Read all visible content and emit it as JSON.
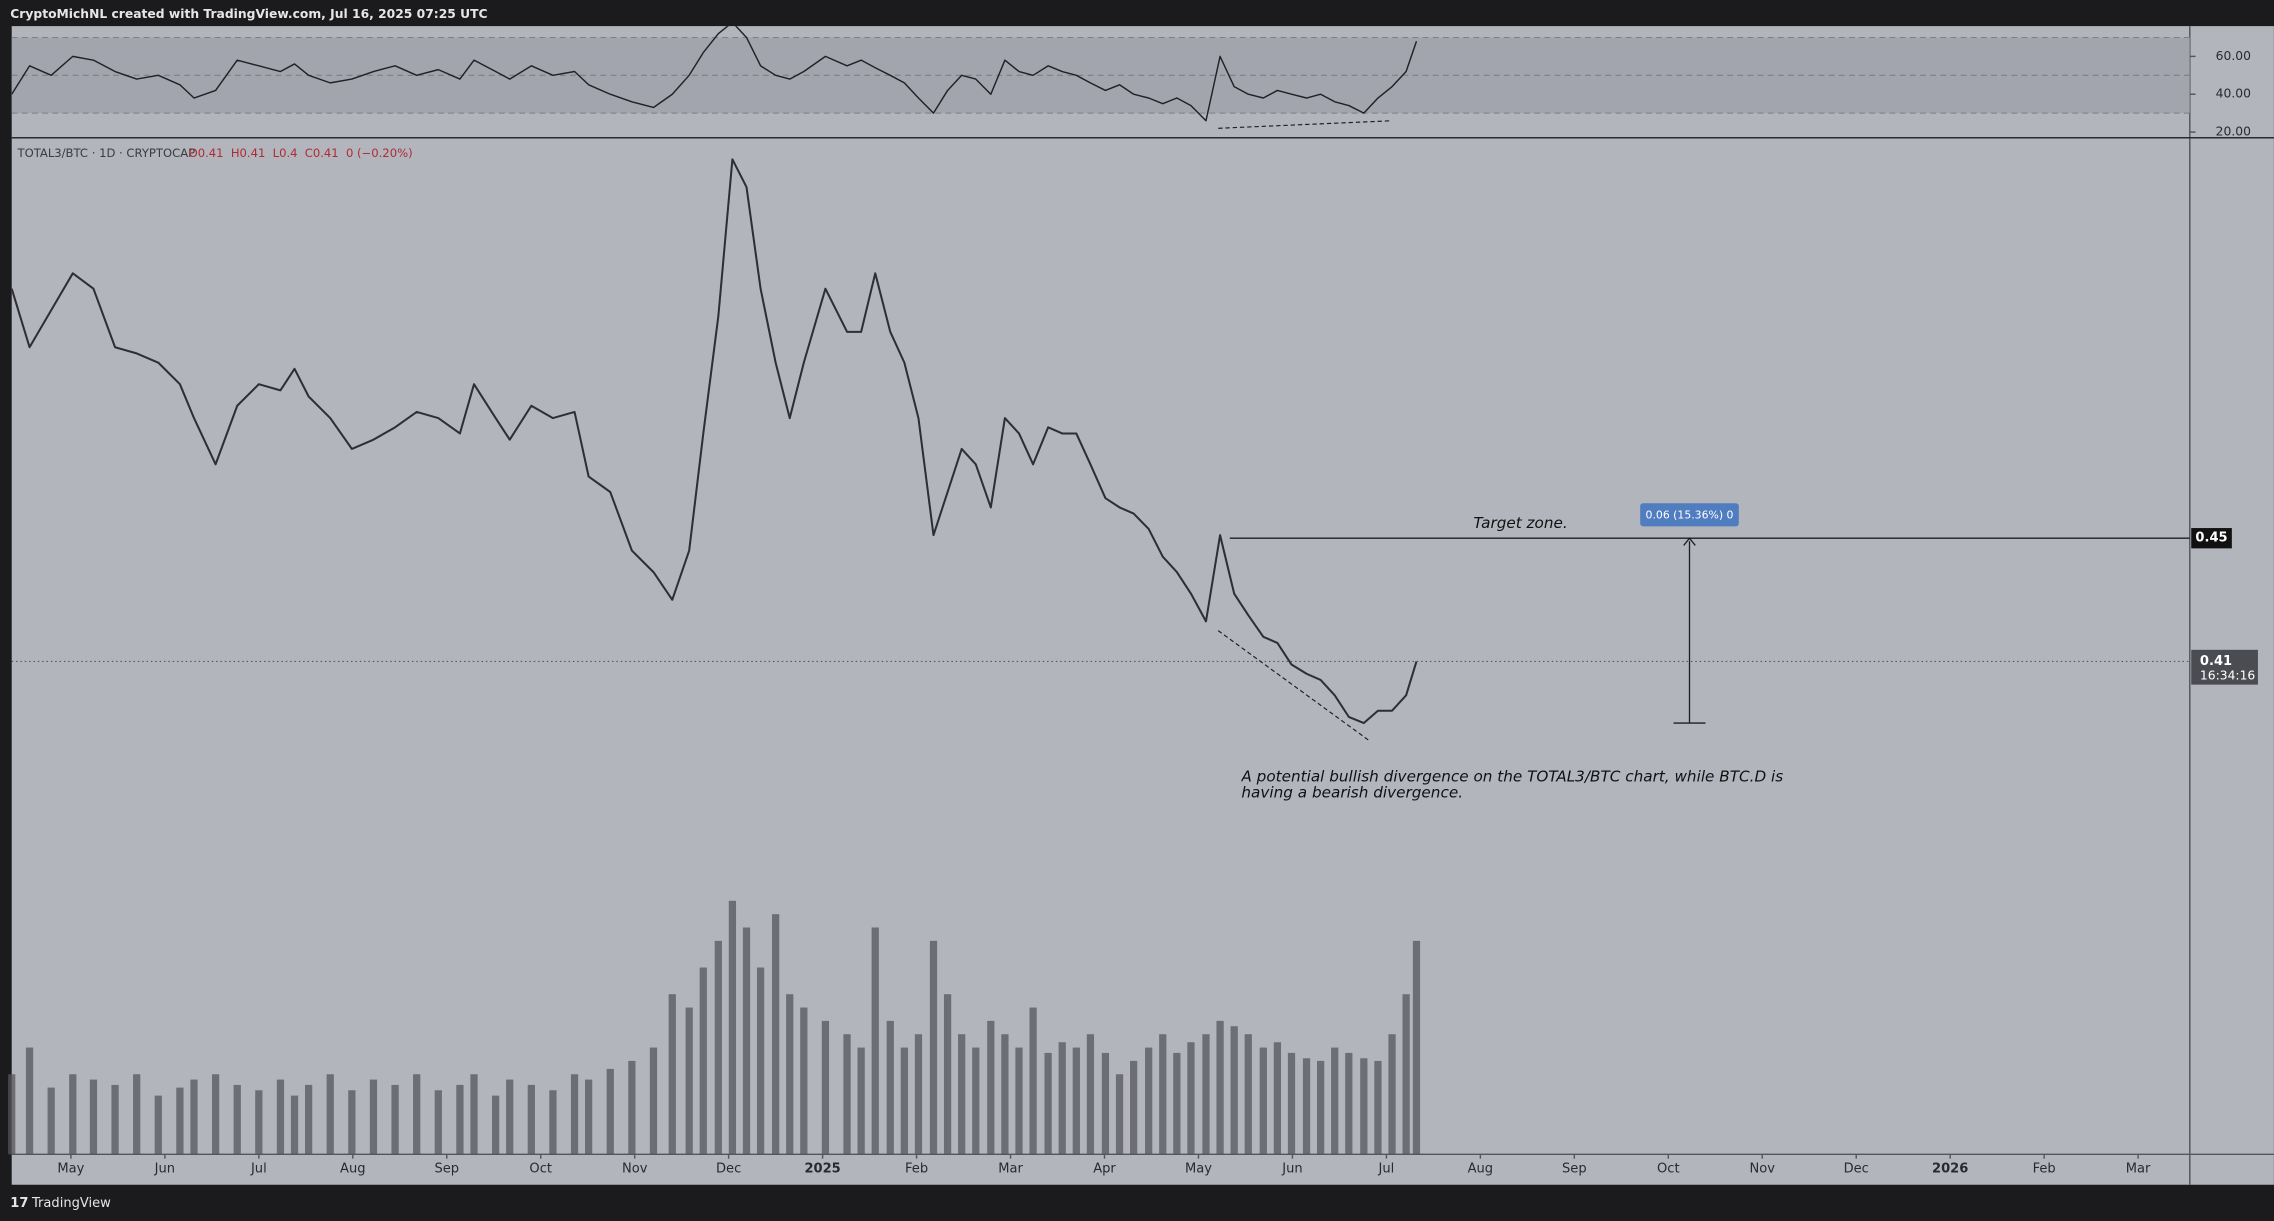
{
  "header": {
    "text": "CryptoMichNL created with TradingView.com, Jul 16, 2025 07:25 UTC"
  },
  "footer": {
    "brand": "TradingView"
  },
  "chart_data": [
    {
      "type": "line",
      "title": "TOTAL3/BTC · 1D · CRYPTOCAP",
      "ohlc": [
        "O0.41",
        "H0.41",
        "L0.4",
        "C0.41",
        "0 (−0.20%)"
      ],
      "color": "#2e2e33",
      "x": [
        3.37,
        3.56,
        3.79,
        4.02,
        4.24,
        4.47,
        4.7,
        4.93,
        5.16,
        5.31,
        5.54,
        5.77,
        6.0,
        6.23,
        6.38,
        6.53,
        6.76,
        6.99,
        7.22,
        7.45,
        7.68,
        7.91,
        8.14,
        8.29,
        8.52,
        8.67,
        8.9,
        9.13,
        9.36,
        9.51,
        9.74,
        9.97,
        10.2,
        10.4,
        10.58,
        10.73,
        10.89,
        11.04,
        11.19,
        11.34,
        11.5,
        11.65,
        11.8,
        12.03,
        12.26,
        12.41,
        12.56,
        12.72,
        12.87,
        13.02,
        13.18,
        13.33,
        13.48,
        13.63,
        13.79,
        13.94,
        14.09,
        14.24,
        14.4,
        14.55,
        14.7,
        14.85,
        15.01,
        15.16,
        15.31,
        15.47,
        15.62,
        15.77,
        15.92,
        16.08,
        16.23,
        16.38,
        16.53,
        16.69,
        16.84,
        16.99,
        17.15,
        17.3,
        17.45,
        17.6,
        17.76,
        17.91,
        18.06,
        18.21,
        18.32
      ],
      "values": [
        0.531,
        0.512,
        0.524,
        0.536,
        0.531,
        0.512,
        0.51,
        0.507,
        0.5,
        0.489,
        0.474,
        0.493,
        0.5,
        0.498,
        0.505,
        0.496,
        0.489,
        0.479,
        0.482,
        0.486,
        0.491,
        0.489,
        0.484,
        0.5,
        0.489,
        0.482,
        0.493,
        0.489,
        0.491,
        0.47,
        0.465,
        0.446,
        0.439,
        0.43,
        0.446,
        0.484,
        0.522,
        0.573,
        0.564,
        0.531,
        0.507,
        0.489,
        0.507,
        0.531,
        0.517,
        0.517,
        0.536,
        0.517,
        0.507,
        0.489,
        0.451,
        0.465,
        0.479,
        0.474,
        0.46,
        0.489,
        0.484,
        0.474,
        0.486,
        0.484,
        0.484,
        0.474,
        0.463,
        0.46,
        0.458,
        0.453,
        0.444,
        0.439,
        0.432,
        0.423,
        0.451,
        0.432,
        0.425,
        0.418,
        0.416,
        0.409,
        0.406,
        0.404,
        0.399,
        0.392,
        0.39,
        0.394,
        0.394,
        0.399,
        0.41
      ],
      "xlim": [
        3.37,
        26.55
      ],
      "ylim": [
        0.25,
        0.58
      ],
      "xticks": [
        {
          "value": 4,
          "label": "May"
        },
        {
          "value": 5,
          "label": "Jun"
        },
        {
          "value": 6,
          "label": "Jul"
        },
        {
          "value": 7,
          "label": "Aug"
        },
        {
          "value": 8,
          "label": "Sep"
        },
        {
          "value": 9,
          "label": "Oct"
        },
        {
          "value": 10,
          "label": "Nov"
        },
        {
          "value": 11,
          "label": "Dec"
        },
        {
          "value": 12,
          "label": "2025"
        },
        {
          "value": 13,
          "label": "Feb"
        },
        {
          "value": 14,
          "label": "Mar"
        },
        {
          "value": 15,
          "label": "Apr"
        },
        {
          "value": 16,
          "label": "May"
        },
        {
          "value": 17,
          "label": "Jun"
        },
        {
          "value": 18,
          "label": "Jul"
        },
        {
          "value": 19,
          "label": "Aug"
        },
        {
          "value": 20,
          "label": "Sep"
        },
        {
          "value": 21,
          "label": "Oct"
        },
        {
          "value": 22,
          "label": "Nov"
        },
        {
          "value": 23,
          "label": "Dec"
        },
        {
          "value": 24,
          "label": "2026"
        },
        {
          "value": 25,
          "label": "Feb"
        },
        {
          "value": 26,
          "label": "Mar"
        }
      ],
      "last_price": 0.41,
      "countdown": "16:34:16",
      "target": {
        "value": 0.45,
        "label": "Target zone."
      },
      "measure": {
        "from": 0.39,
        "to": 0.45,
        "label": "0.06 (15.36%) 0"
      },
      "divergence": {
        "x": [
          16.21,
          17.83
        ],
        "values": [
          0.42,
          0.384
        ]
      },
      "note": "A potential bullish divergence on the TOTAL3/BTC chart, while BTC.D is having a bearish divergence."
    },
    {
      "type": "line",
      "color": "#222226",
      "x": [
        3.37,
        3.56,
        3.79,
        4.02,
        4.24,
        4.47,
        4.7,
        4.93,
        5.16,
        5.31,
        5.54,
        5.77,
        6.0,
        6.23,
        6.38,
        6.53,
        6.76,
        6.99,
        7.22,
        7.45,
        7.68,
        7.91,
        8.14,
        8.29,
        8.52,
        8.67,
        8.9,
        9.13,
        9.36,
        9.51,
        9.74,
        9.97,
        10.2,
        10.4,
        10.58,
        10.73,
        10.89,
        11.04,
        11.19,
        11.34,
        11.5,
        11.65,
        11.8,
        12.03,
        12.26,
        12.41,
        12.56,
        12.72,
        12.87,
        13.02,
        13.18,
        13.33,
        13.48,
        13.63,
        13.79,
        13.94,
        14.09,
        14.24,
        14.4,
        14.55,
        14.7,
        14.85,
        15.01,
        15.16,
        15.31,
        15.47,
        15.62,
        15.77,
        15.92,
        16.08,
        16.23,
        16.38,
        16.53,
        16.69,
        16.84,
        16.99,
        17.15,
        17.3,
        17.45,
        17.6,
        17.76,
        17.91,
        18.06,
        18.21,
        18.32
      ],
      "values": [
        40,
        55,
        50,
        60,
        58,
        52,
        48,
        50,
        45,
        38,
        42,
        58,
        55,
        52,
        56,
        50,
        46,
        48,
        52,
        55,
        50,
        53,
        48,
        58,
        52,
        48,
        55,
        50,
        52,
        45,
        40,
        36,
        33,
        40,
        50,
        62,
        72,
        78,
        70,
        55,
        50,
        48,
        52,
        60,
        55,
        58,
        54,
        50,
        46,
        38,
        30,
        42,
        50,
        48,
        40,
        58,
        52,
        50,
        55,
        52,
        50,
        46,
        42,
        45,
        40,
        38,
        35,
        38,
        34,
        26,
        60,
        44,
        40,
        38,
        42,
        40,
        38,
        40,
        36,
        34,
        30,
        38,
        44,
        52,
        68
      ],
      "xlim": [
        3.37,
        26.55
      ],
      "ylim": [
        17,
        76
      ],
      "yticks": [
        {
          "value": 20,
          "label": "20.00"
        },
        {
          "value": 40,
          "label": "40.00"
        },
        {
          "value": 60,
          "label": "60.00"
        }
      ],
      "band": [
        30,
        70
      ],
      "midline": 50,
      "divergence": {
        "x": [
          16.21,
          18.06
        ],
        "values": [
          22,
          26
        ]
      }
    },
    {
      "type": "bar",
      "color": "#55565c",
      "x": [
        3.37,
        3.56,
        3.79,
        4.02,
        4.24,
        4.47,
        4.7,
        4.93,
        5.16,
        5.31,
        5.54,
        5.77,
        6.0,
        6.23,
        6.38,
        6.53,
        6.76,
        6.99,
        7.22,
        7.45,
        7.68,
        7.91,
        8.14,
        8.29,
        8.52,
        8.67,
        8.9,
        9.13,
        9.36,
        9.51,
        9.74,
        9.97,
        10.2,
        10.4,
        10.58,
        10.73,
        10.89,
        11.04,
        11.19,
        11.34,
        11.5,
        11.65,
        11.8,
        12.03,
        12.26,
        12.41,
        12.56,
        12.72,
        12.87,
        13.02,
        13.18,
        13.33,
        13.48,
        13.63,
        13.79,
        13.94,
        14.09,
        14.24,
        14.4,
        14.55,
        14.7,
        14.85,
        15.01,
        15.16,
        15.31,
        15.47,
        15.62,
        15.77,
        15.92,
        16.08,
        16.23,
        16.38,
        16.53,
        16.69,
        16.84,
        16.99,
        17.15,
        17.3,
        17.45,
        17.6,
        17.76,
        17.91,
        18.06,
        18.21,
        18.32
      ],
      "values": [
        30,
        40,
        25,
        30,
        28,
        26,
        30,
        22,
        25,
        28,
        30,
        26,
        24,
        28,
        22,
        26,
        30,
        24,
        28,
        26,
        30,
        24,
        26,
        30,
        22,
        28,
        26,
        24,
        30,
        28,
        32,
        35,
        40,
        60,
        55,
        70,
        80,
        95,
        85,
        70,
        90,
        60,
        55,
        50,
        45,
        40,
        85,
        50,
        40,
        45,
        80,
        60,
        45,
        40,
        50,
        45,
        40,
        55,
        38,
        42,
        40,
        45,
        38,
        30,
        35,
        40,
        45,
        38,
        42,
        45,
        50,
        48,
        45,
        40,
        42,
        38,
        36,
        35,
        40,
        38,
        36,
        35,
        45,
        60,
        80
      ],
      "xlim": [
        3.37,
        26.55
      ],
      "ylim": [
        0,
        100
      ]
    }
  ]
}
